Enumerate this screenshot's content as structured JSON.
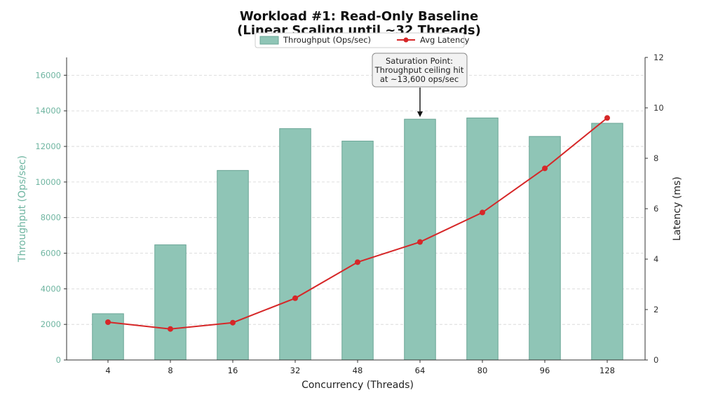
{
  "chart_data": {
    "type": "bar",
    "title": "Workload #1: Read-Only Baseline",
    "subtitle": "(Linear Scaling until ~32 Threads)",
    "xlabel": "Concurrency (Threads)",
    "ylabel": "Throughput (Ops/sec)",
    "y2label": "Latency (ms)",
    "categories": [
      "4",
      "8",
      "16",
      "32",
      "48",
      "64",
      "80",
      "96",
      "128"
    ],
    "series": [
      {
        "name": "Throughput (Ops/sec)",
        "type": "bar",
        "axis": "left",
        "color": "#8fc5b6",
        "values": [
          2600,
          6470,
          10650,
          13000,
          12300,
          13530,
          13600,
          12560,
          13300
        ]
      },
      {
        "name": "Avg Latency",
        "type": "line",
        "axis": "right",
        "color": "#d62728",
        "values": [
          1.5,
          1.23,
          1.48,
          2.45,
          3.88,
          4.68,
          5.85,
          7.6,
          9.6
        ]
      }
    ],
    "ylim": [
      0,
      17000
    ],
    "y_ticks": [
      0,
      2000,
      4000,
      6000,
      8000,
      10000,
      12000,
      14000,
      16000
    ],
    "y2lim": [
      0,
      12
    ],
    "y2_ticks": [
      0,
      2,
      4,
      6,
      8,
      10,
      12
    ],
    "grid": true,
    "legend": "top-center",
    "annotation": {
      "lines": [
        "Saturation Point:",
        "Throughput ceiling hit",
        "at ~13,600 ops/sec"
      ],
      "target_category": "64",
      "target_value": 13530
    }
  }
}
